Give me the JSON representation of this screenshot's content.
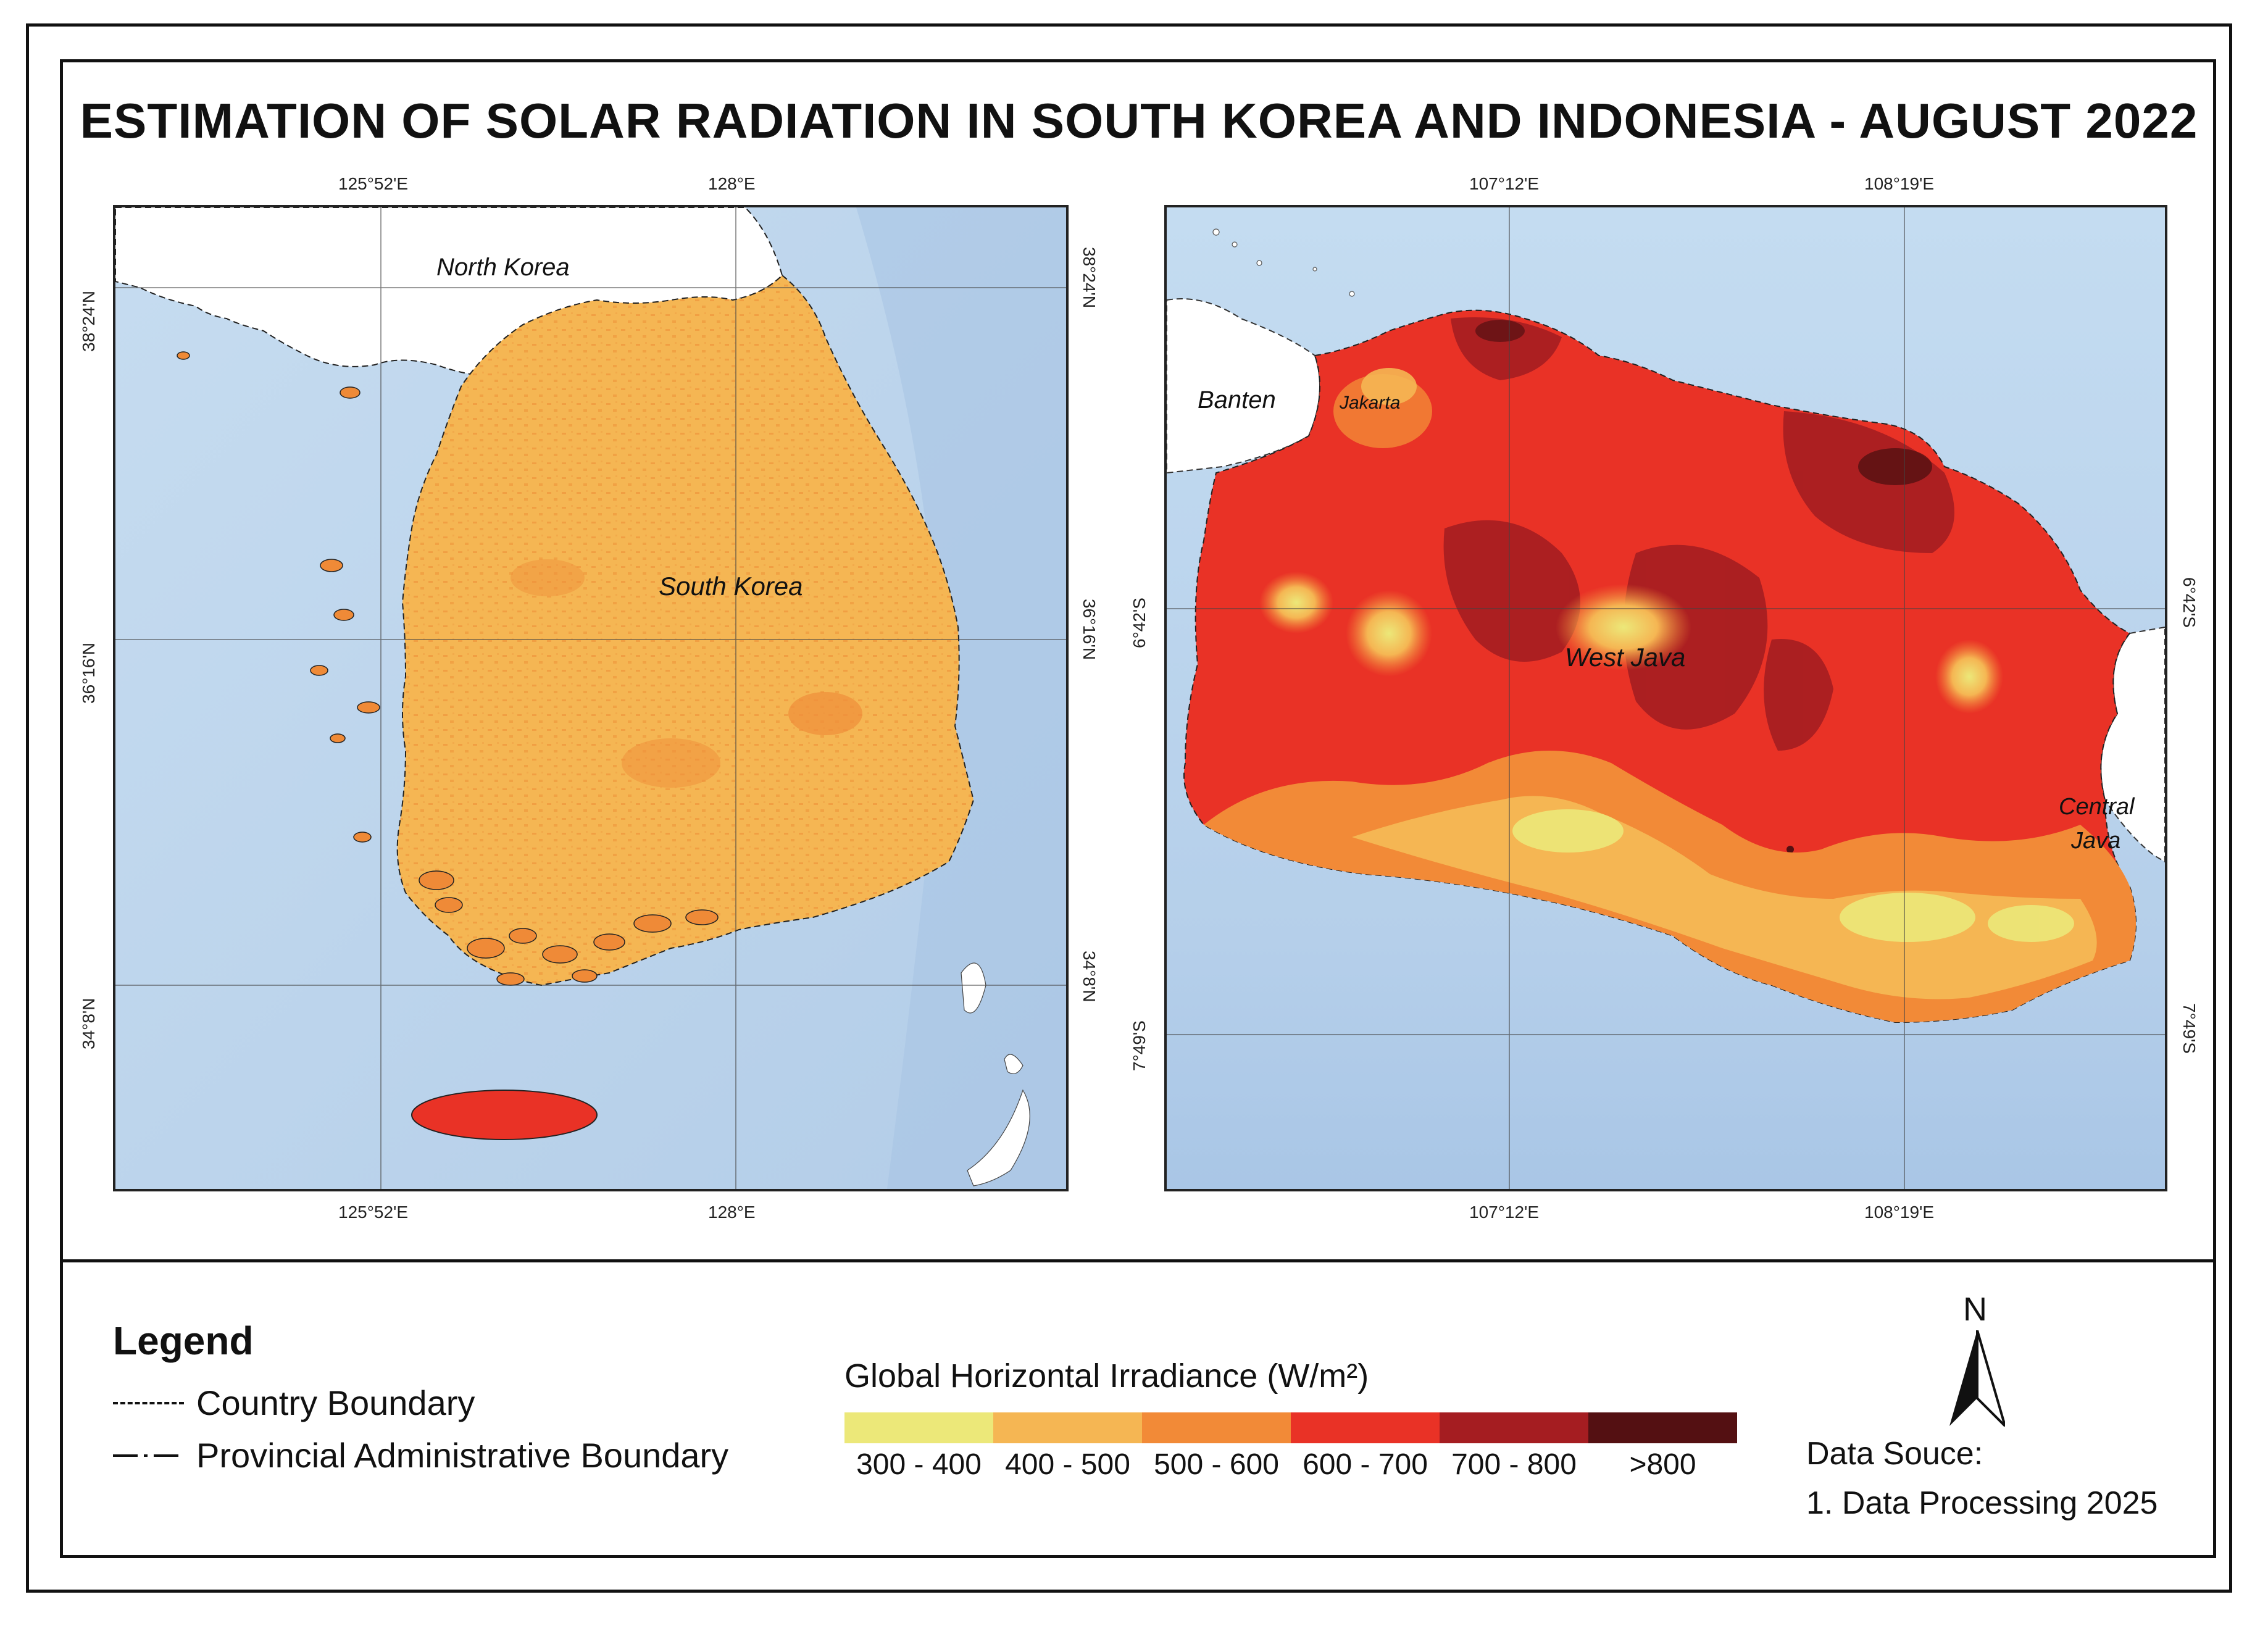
{
  "title": "ESTIMATION OF SOLAR RADIATION IN SOUTH KOREA AND INDONESIA - AUGUST 2022",
  "korea_map": {
    "top_ticks": [
      "125°52'E",
      "128°E"
    ],
    "bottom_ticks": [
      "125°52'E",
      "128°E"
    ],
    "left_ticks": [
      "38°24'N",
      "36°16'N",
      "34°8'N"
    ],
    "right_ticks": [
      "38°24'N",
      "36°16'N",
      "34°8'N"
    ],
    "labels": {
      "north_korea": "North Korea",
      "south_korea": "South Korea"
    }
  },
  "java_map": {
    "top_ticks": [
      "107°12'E",
      "108°19'E"
    ],
    "bottom_ticks": [
      "107°12'E",
      "108°19'E"
    ],
    "left_ticks": [
      "6°42'S",
      "7°49'S"
    ],
    "right_ticks": [
      "6°42'S",
      "7°49'S"
    ],
    "labels": {
      "banten": "Banten",
      "jakarta": "Jakarta",
      "west_java": "West Java",
      "central_java_1": "Central",
      "central_java_2": "Java"
    }
  },
  "legend": {
    "title": "Legend",
    "country_boundary": "Country Boundary",
    "provincial_boundary": "Provincial Administrative Boundary"
  },
  "irradiance_scale": {
    "title": "Global Horizontal Irradiance (W/m²)",
    "classes": [
      {
        "label": "300 - 400",
        "color": "#ece879"
      },
      {
        "label": "400 - 500",
        "color": "#f5b653"
      },
      {
        "label": "500 - 600",
        "color": "#f28a37"
      },
      {
        "label": "600 - 700",
        "color": "#e93226"
      },
      {
        "label": "700 - 800",
        "color": "#a51d21"
      },
      {
        "label": ">800",
        "color": "#541012"
      }
    ]
  },
  "north_arrow": {
    "label": "N"
  },
  "data_source": {
    "title": "Data Souce:",
    "item": "1. Data Processing 2025"
  },
  "colors": {
    "sea": "#b9d3ec",
    "land_other": "#ffffff",
    "frame": "#111111"
  }
}
